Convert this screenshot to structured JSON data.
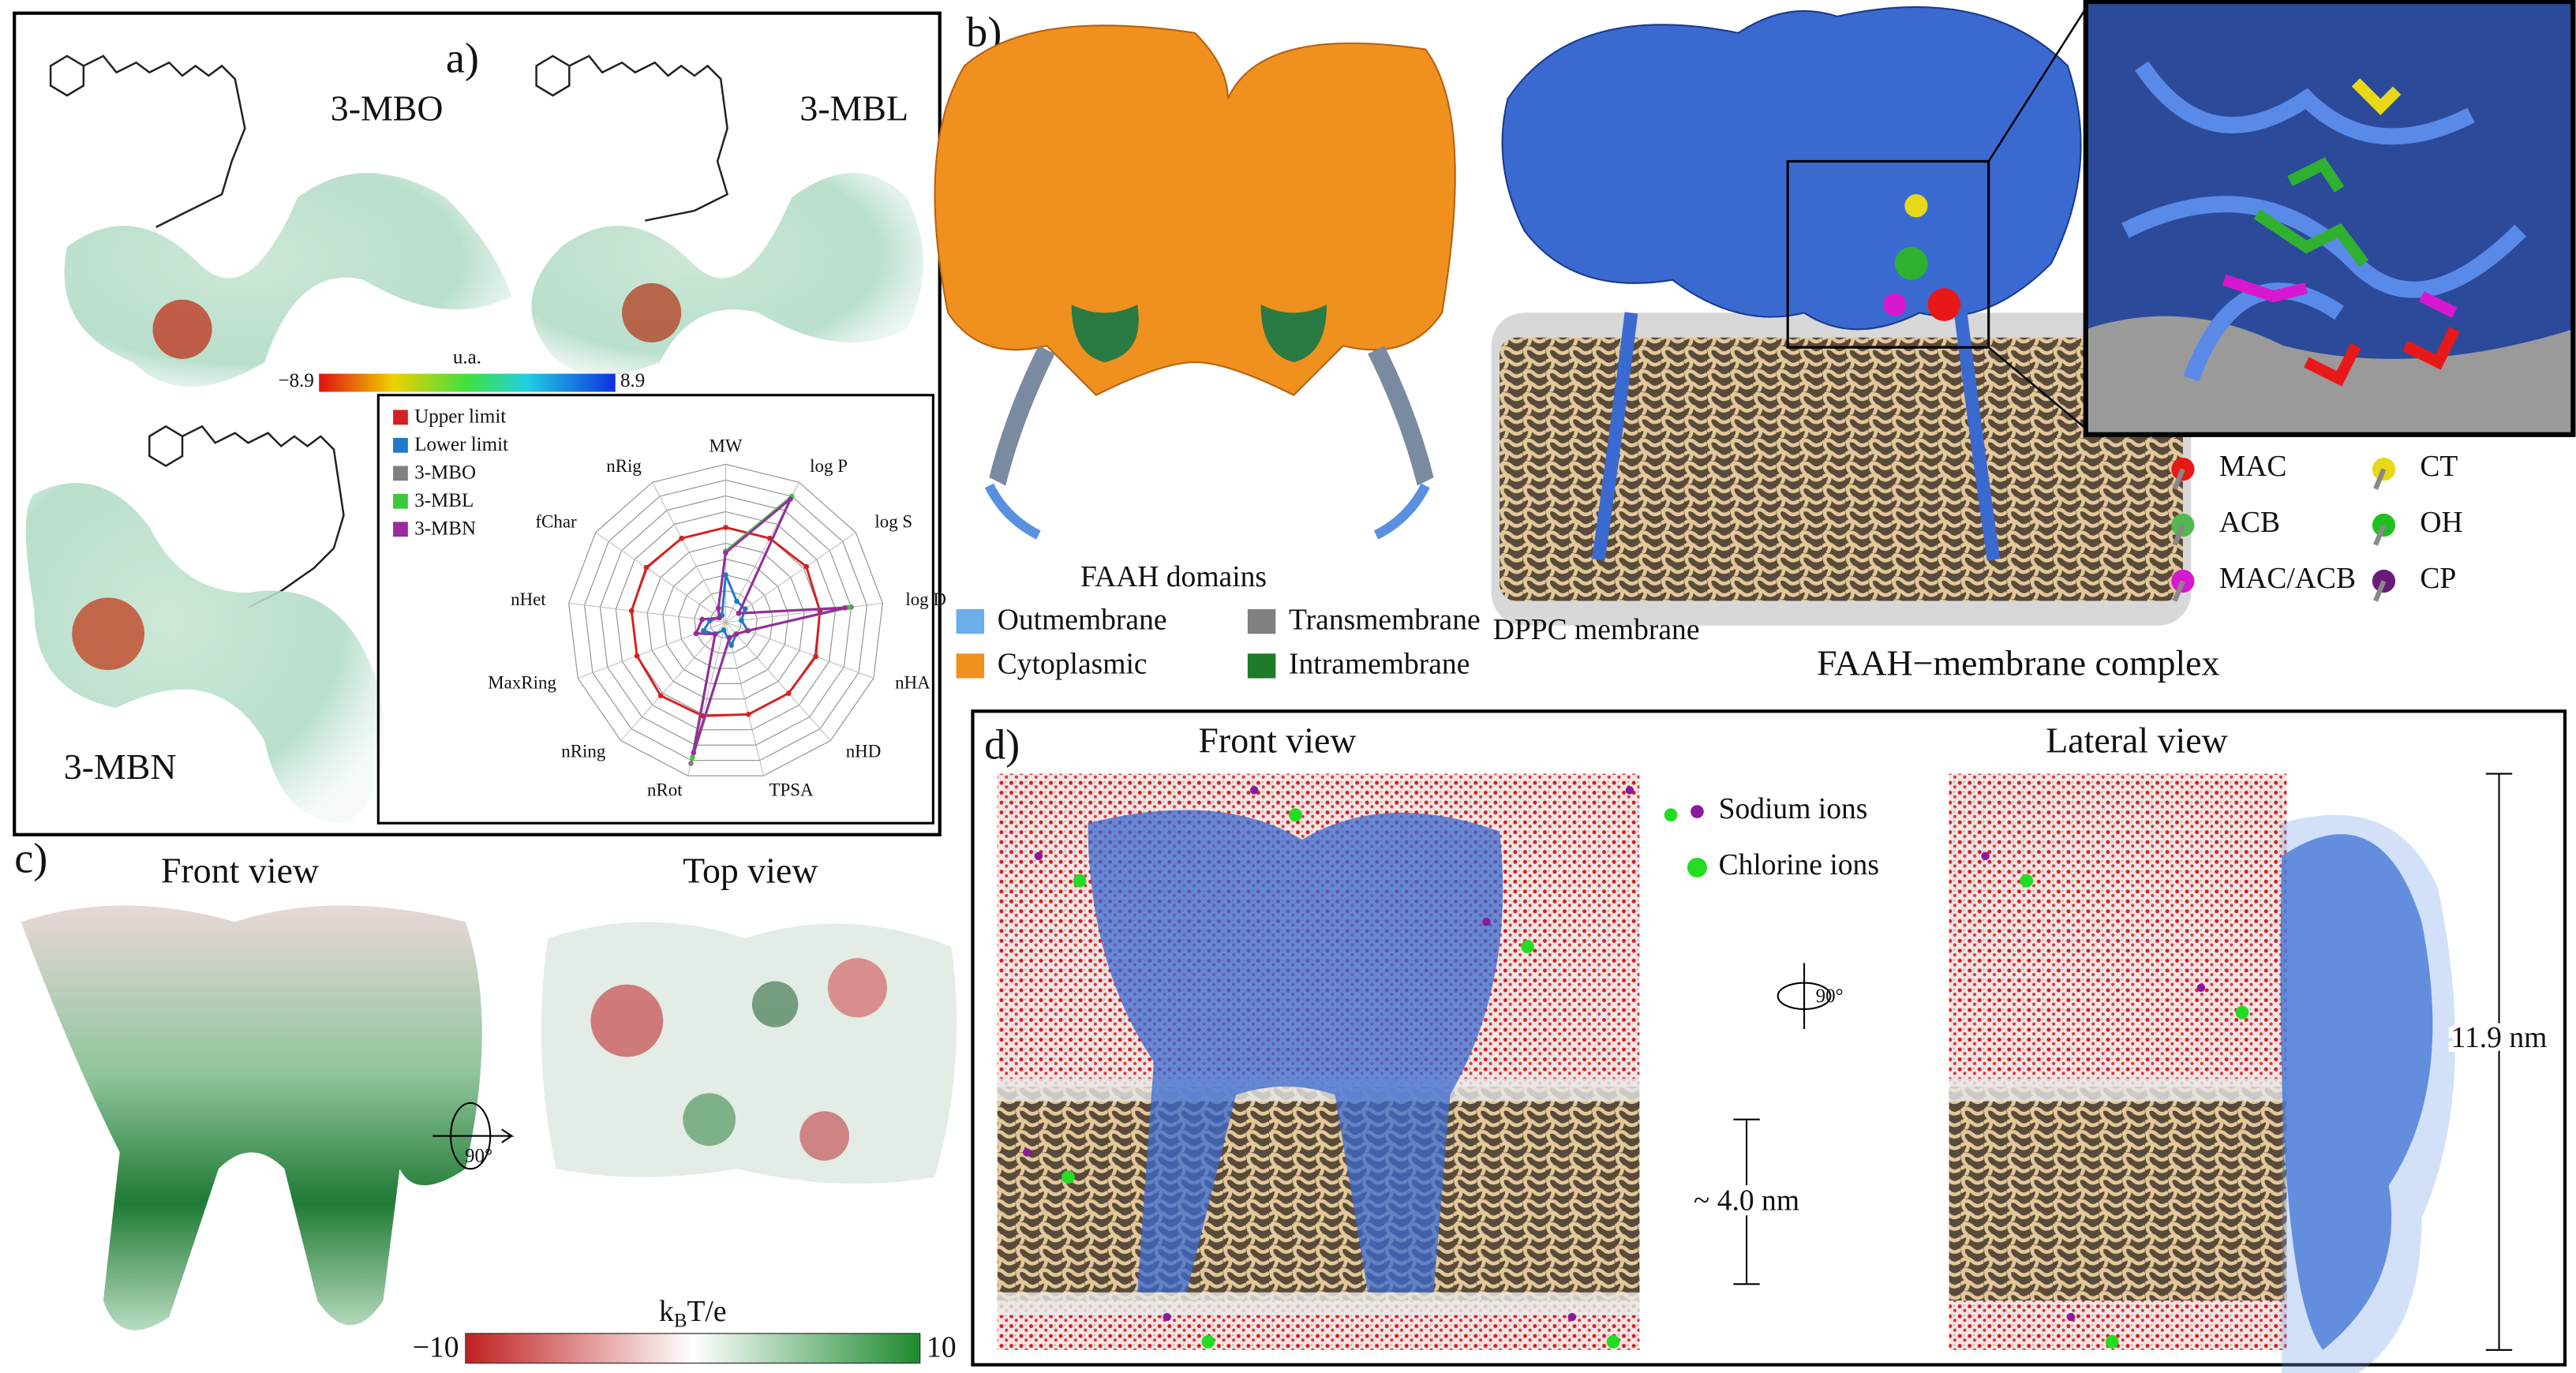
{
  "panel_a": {
    "label": "a)",
    "molecules": [
      "3-MBO",
      "3-MBL",
      "3-MBN"
    ],
    "scale": {
      "title": "u.a.",
      "min": "−8.9",
      "max": "8.9"
    }
  },
  "chart_data": {
    "type": "radar",
    "axes": [
      "MW",
      "log P",
      "log S",
      "log D",
      "nHA",
      "nHD",
      "TPSA",
      "nRot",
      "nRing",
      "MaxRing",
      "nHet",
      "fChar",
      "nRig"
    ],
    "rlim": [
      0,
      10
    ],
    "rticks": [
      1,
      2,
      3,
      4,
      5,
      6,
      7,
      8,
      9,
      10
    ],
    "grid": true,
    "legend": "upper left",
    "series": [
      {
        "name": "Upper limit",
        "color": "#d62020",
        "values": [
          6,
          6,
          6.2,
          6,
          6.1,
          6,
          6,
          6.1,
          6.2,
          6,
          6,
          6.1,
          6
        ]
      },
      {
        "name": "Lower limit",
        "color": "#1f78c8",
        "values": [
          3,
          1.5,
          1.5,
          1,
          1.5,
          1,
          1.5,
          0.5,
          1,
          1.5,
          1,
          0.5,
          0.5
        ]
      },
      {
        "name": "3-MBO",
        "color": "#808080",
        "values": [
          4.5,
          9,
          1,
          8,
          1.5,
          1,
          1,
          9.2,
          1,
          2,
          1.5,
          0.5,
          1
        ]
      },
      {
        "name": "3-MBL",
        "color": "#3cc83c",
        "values": [
          4.5,
          9,
          1,
          7.8,
          1.5,
          1,
          1,
          8.8,
          1,
          2,
          1.5,
          0.5,
          1
        ]
      },
      {
        "name": "3-MBN",
        "color": "#9a2aa0",
        "values": [
          4.4,
          8.8,
          1,
          7.6,
          1.5,
          1,
          1,
          8.5,
          1,
          2,
          1.5,
          0.5,
          1
        ]
      }
    ]
  },
  "panel_b": {
    "label": "b)",
    "domains_title": "FAAH domains",
    "domains": [
      {
        "name": "Outmembrane",
        "color": "#6aaeea"
      },
      {
        "name": "Cytoplasmic",
        "color": "#f0901e"
      },
      {
        "name": "Transmembrane",
        "color": "#808080"
      },
      {
        "name": "Intramembrane",
        "color": "#1f7a2a"
      }
    ],
    "membrane_label": "DPPC membrane",
    "complex_title": "FAAH−membrane complex",
    "residues": [
      {
        "name": "MAC",
        "color": "#e81818"
      },
      {
        "name": "CT",
        "color": "#e8d818"
      },
      {
        "name": "ACB",
        "color": "#52b852"
      },
      {
        "name": "OH",
        "color": "#20c020"
      },
      {
        "name": "MAC/ACB",
        "color": "#d818d0"
      },
      {
        "name": "CP",
        "color": "#6a1a7a"
      }
    ]
  },
  "panel_c": {
    "label": "c)",
    "front": "Front view",
    "top": "Top view",
    "rotation": "90°",
    "scale": {
      "unit": [
        "k",
        "B",
        "T/e"
      ],
      "min": "−10",
      "max": "10"
    }
  },
  "panel_d": {
    "label": "d)",
    "front": "Front view",
    "lateral": "Lateral view",
    "rotation": "90°",
    "ions": [
      {
        "name": "Sodium ions",
        "color": "#8a1a9a"
      },
      {
        "name": "Chlorine ions",
        "color": "#22dd22"
      }
    ],
    "membrane_thickness": "~ 4.0 nm",
    "box_height": "11.9 nm"
  }
}
